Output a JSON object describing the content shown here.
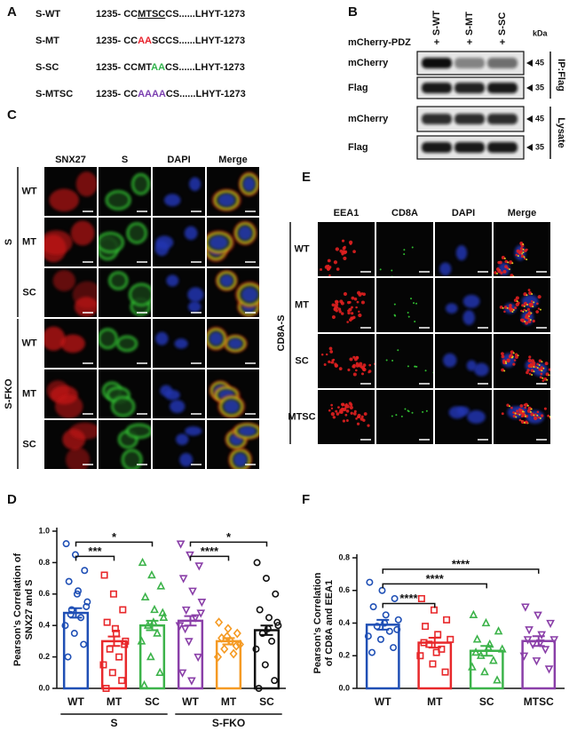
{
  "panel_a": {
    "label": "A",
    "rows": [
      {
        "name": "S-WT",
        "sequence": [
          {
            "text": "1235- CC"
          },
          {
            "text": "MTSC",
            "underline": true
          },
          {
            "text": "CS......LHYT-1273"
          }
        ]
      },
      {
        "name": "S-MT",
        "sequence": [
          {
            "text": "1235- CC"
          },
          {
            "text": "AA",
            "color": "#e8202a"
          },
          {
            "text": "SCCS......LHYT-1273"
          }
        ]
      },
      {
        "name": "S-SC",
        "sequence": [
          {
            "text": "1235- CCMT"
          },
          {
            "text": "AA",
            "color": "#2fb24a"
          },
          {
            "text": "CS......LHYT-1273"
          }
        ]
      },
      {
        "name": "S-MTSC",
        "sequence": [
          {
            "text": "1235- CC"
          },
          {
            "text": "AAAA",
            "color": "#7b3fb0"
          },
          {
            "text": "CS......LHYT-1273"
          }
        ]
      }
    ]
  },
  "panel_b": {
    "label": "B",
    "lanes": [
      "S-WT",
      "S-MT",
      "S-SC"
    ],
    "treatment": "mCherry-PDZ",
    "treatment_marks": [
      "+",
      "+",
      "+"
    ],
    "unit": "kDa",
    "blots": [
      {
        "label": "mCherry",
        "marker": "45"
      },
      {
        "label": "Flag",
        "marker": "35"
      },
      {
        "label": "mCherry",
        "marker": "45"
      },
      {
        "label": "Flag",
        "marker": "35"
      }
    ],
    "groups": [
      "IP:Flag",
      "Lysate"
    ]
  },
  "panel_c": {
    "label": "C",
    "columns": [
      "SNX27",
      "S",
      "DAPI",
      "Merge"
    ],
    "groups": [
      {
        "name": "S",
        "rows": [
          "WT",
          "MT",
          "SC"
        ]
      },
      {
        "name": "S-FKO",
        "rows": [
          "WT",
          "MT",
          "SC"
        ]
      }
    ]
  },
  "panel_e": {
    "label": "E",
    "columns": [
      "EEA1",
      "CD8A",
      "DAPI",
      "Merge"
    ],
    "groups": [
      {
        "name": "CD8A-S",
        "rows": [
          "WT",
          "MT",
          "SC",
          "MTSC"
        ]
      }
    ]
  },
  "chart_data": [
    {
      "type": "bar",
      "panel": "D",
      "y_label": [
        "Pearson's Correlation of",
        "SNX27 and S"
      ],
      "categories": [
        "WT",
        "MT",
        "SC",
        "WT",
        "MT",
        "SC"
      ],
      "groups": [
        {
          "name": "S",
          "from": 0,
          "to": 2
        },
        {
          "name": "S-FKO",
          "from": 3,
          "to": 5
        }
      ],
      "values": [
        0.48,
        0.3,
        0.4,
        0.43,
        0.3,
        0.37
      ],
      "errors": [
        0.03,
        0.03,
        0.03,
        0.03,
        0.02,
        0.03
      ],
      "colors": [
        "#1f4fb5",
        "#e8282b",
        "#3cb34a",
        "#8a3fa8",
        "#f59a23",
        "#111111"
      ],
      "markers": [
        "circle",
        "square",
        "triangle",
        "triangle-down",
        "diamond",
        "circle"
      ],
      "points": [
        [
          0.92,
          0.85,
          0.75,
          0.68,
          0.62,
          0.55,
          0.5,
          0.45,
          0.4,
          0.35,
          0.28,
          0.2,
          0.6,
          0.52,
          0.47
        ],
        [
          0.72,
          0.6,
          0.5,
          0.42,
          0.35,
          0.3,
          0.25,
          0.2,
          0.15,
          0.1,
          0.05,
          0.0,
          0.38,
          0.28
        ],
        [
          0.8,
          0.72,
          0.65,
          0.58,
          0.5,
          0.45,
          0.4,
          0.35,
          0.3,
          0.2,
          0.1,
          0.02,
          0.42,
          0.48
        ],
        [
          0.92,
          0.85,
          0.78,
          0.7,
          0.62,
          0.55,
          0.5,
          0.45,
          0.4,
          0.3,
          0.2,
          0.1,
          0.05,
          0.48,
          0.38
        ],
        [
          0.42,
          0.38,
          0.35,
          0.32,
          0.3,
          0.28,
          0.25,
          0.22,
          0.2,
          0.33,
          0.27
        ],
        [
          0.8,
          0.7,
          0.6,
          0.5,
          0.45,
          0.4,
          0.35,
          0.3,
          0.25,
          0.15,
          0.05,
          0.0,
          0.38,
          0.42
        ]
      ],
      "ylim": [
        0,
        1.0
      ],
      "yticks": [
        {
          "value": 0,
          "label": "0.0"
        },
        0.2,
        0.4,
        0.6,
        0.8,
        {
          "value": 1.0,
          "label": "1.0"
        }
      ],
      "annotations": [
        {
          "from": 0,
          "to": 2,
          "y": 0.93,
          "text": "*"
        },
        {
          "from": 0,
          "to": 1,
          "y": 0.84,
          "text": "***"
        },
        {
          "from": 3,
          "to": 5,
          "y": 0.93,
          "text": "*"
        },
        {
          "from": 3,
          "to": 4,
          "y": 0.84,
          "text": "****"
        }
      ]
    },
    {
      "type": "bar",
      "panel": "F",
      "y_label": [
        "Pearson's Correlation",
        "of CD8A and EEA1"
      ],
      "categories": [
        "WT",
        "MT",
        "SC",
        "MTSC"
      ],
      "values": [
        0.39,
        0.28,
        0.23,
        0.29
      ],
      "errors": [
        0.03,
        0.03,
        0.03,
        0.03
      ],
      "colors": [
        "#1f4fb5",
        "#e8282b",
        "#3cb34a",
        "#8a3fa8"
      ],
      "markers": [
        "circle",
        "square",
        "triangle",
        "triangle-down"
      ],
      "points": [
        [
          0.65,
          0.6,
          0.55,
          0.5,
          0.45,
          0.42,
          0.38,
          0.35,
          0.32,
          0.3,
          0.25,
          0.22,
          0.4,
          0.36
        ],
        [
          0.55,
          0.48,
          0.42,
          0.38,
          0.33,
          0.3,
          0.27,
          0.24,
          0.2,
          0.15,
          0.1,
          0.28,
          0.22
        ],
        [
          0.45,
          0.4,
          0.35,
          0.3,
          0.27,
          0.24,
          0.2,
          0.17,
          0.13,
          0.1,
          0.05,
          0.22,
          0.25
        ],
        [
          0.5,
          0.45,
          0.4,
          0.36,
          0.33,
          0.3,
          0.27,
          0.24,
          0.2,
          0.17,
          0.12,
          0.3,
          0.28
        ]
      ],
      "ylim": [
        0,
        0.8
      ],
      "yticks": [
        {
          "value": 0,
          "label": "0.0"
        },
        0.2,
        0.4,
        0.6,
        0.8
      ],
      "annotations": [
        {
          "from": 0,
          "to": 1,
          "y": 0.52,
          "text": "****"
        },
        {
          "from": 0,
          "to": 2,
          "y": 0.64,
          "text": "****"
        },
        {
          "from": 0,
          "to": 3,
          "y": 0.73,
          "text": "****"
        }
      ]
    }
  ]
}
